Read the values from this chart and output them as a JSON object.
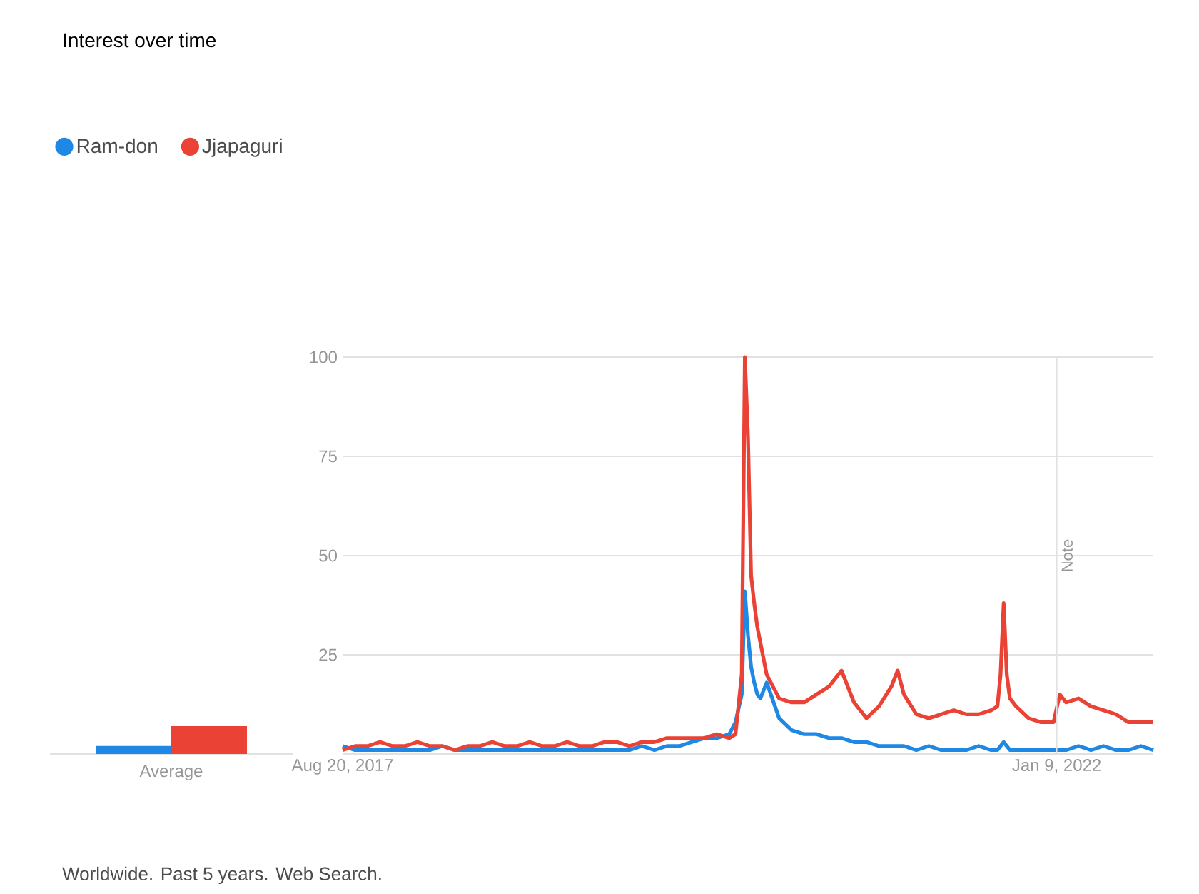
{
  "chart_data": [
    {
      "type": "bar",
      "title": "Interest over time",
      "annotations": [
        "Worldwide. Past 5 years. Web Search."
      ],
      "categories": [
        "Average"
      ],
      "ylim": [
        0,
        100
      ],
      "tick_labels": "x",
      "series": [
        {
          "color": "#1e88e5",
          "values": [
            2
          ]
        },
        {
          "color": "#ea4335",
          "values": [
            7
          ]
        }
      ]
    },
    {
      "type": "line",
      "legend": "top left",
      "grid": "y",
      "x": [
        "2017-08-20",
        "2017-09-17",
        "2017-10-15",
        "2017-11-12",
        "2017-12-10",
        "2018-01-07",
        "2018-02-04",
        "2018-03-04",
        "2018-04-01",
        "2018-04-29",
        "2018-05-27",
        "2018-06-24",
        "2018-07-22",
        "2018-08-19",
        "2018-09-16",
        "2018-10-14",
        "2018-11-11",
        "2018-12-09",
        "2019-01-06",
        "2019-02-03",
        "2019-03-03",
        "2019-03-31",
        "2019-04-28",
        "2019-05-26",
        "2019-06-23",
        "2019-07-21",
        "2019-08-18",
        "2019-09-15",
        "2019-10-13",
        "2019-11-10",
        "2019-12-08",
        "2020-01-05",
        "2020-01-19",
        "2020-02-02",
        "2020-02-09",
        "2020-02-16",
        "2020-02-23",
        "2020-03-01",
        "2020-03-08",
        "2020-03-15",
        "2020-03-29",
        "2020-04-26",
        "2020-05-24",
        "2020-06-21",
        "2020-07-19",
        "2020-08-16",
        "2020-09-13",
        "2020-10-11",
        "2020-11-08",
        "2020-12-06",
        "2021-01-03",
        "2021-01-17",
        "2021-01-31",
        "2021-02-28",
        "2021-03-28",
        "2021-04-25",
        "2021-05-23",
        "2021-06-20",
        "2021-07-18",
        "2021-08-15",
        "2021-08-29",
        "2021-09-05",
        "2021-09-12",
        "2021-09-19",
        "2021-09-26",
        "2021-10-10",
        "2021-11-07",
        "2021-12-05",
        "2022-01-02",
        "2022-01-16",
        "2022-01-30",
        "2022-02-27",
        "2022-03-27",
        "2022-04-24",
        "2022-05-22",
        "2022-06-19",
        "2022-07-17",
        "2022-08-14"
      ],
      "xlim": [
        "2017-08-20",
        "2022-08-14"
      ],
      "xticks": [
        {
          "value": "2017-08-20",
          "label": "Aug 20, 2017"
        },
        {
          "value": "2022-01-09",
          "label": "Jan 9, 2022"
        }
      ],
      "ylim": [
        0,
        100
      ],
      "yticks": [
        25,
        50,
        75,
        100
      ],
      "ref_lines": [
        {
          "axis": "x",
          "value": "2022-01-09",
          "label": "Note"
        }
      ],
      "series": [
        {
          "name": "Ram-don",
          "color": "#1e88e5",
          "values": [
            2,
            1,
            1,
            1,
            1,
            1,
            1,
            1,
            2,
            1,
            1,
            1,
            1,
            1,
            1,
            1,
            1,
            1,
            1,
            1,
            1,
            1,
            1,
            1,
            2,
            1,
            2,
            2,
            3,
            4,
            4,
            5,
            8,
            15,
            41,
            30,
            22,
            18,
            15,
            14,
            18,
            9,
            6,
            5,
            5,
            4,
            4,
            3,
            3,
            2,
            2,
            2,
            2,
            1,
            2,
            1,
            1,
            1,
            2,
            1,
            1,
            2,
            3,
            2,
            1,
            1,
            1,
            1,
            1,
            1,
            1,
            2,
            1,
            2,
            1,
            1,
            2,
            1
          ]
        },
        {
          "name": "Jjapaguri",
          "color": "#ea4335",
          "values": [
            1,
            2,
            2,
            3,
            2,
            2,
            3,
            2,
            2,
            1,
            2,
            2,
            3,
            2,
            2,
            3,
            2,
            2,
            3,
            2,
            2,
            3,
            3,
            2,
            3,
            3,
            4,
            4,
            4,
            4,
            5,
            4,
            5,
            20,
            100,
            80,
            45,
            38,
            32,
            28,
            20,
            14,
            13,
            13,
            15,
            17,
            21,
            13,
            9,
            12,
            17,
            21,
            15,
            10,
            9,
            10,
            11,
            10,
            10,
            11,
            12,
            20,
            38,
            20,
            14,
            12,
            9,
            8,
            8,
            15,
            13,
            14,
            12,
            11,
            10,
            8,
            8,
            8
          ]
        }
      ]
    }
  ]
}
